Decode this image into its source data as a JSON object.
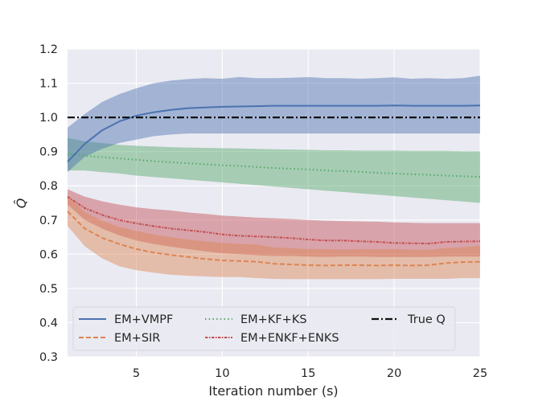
{
  "chart_data": {
    "type": "line",
    "title": "",
    "xlabel": "Iteration number (s)",
    "ylabel": "Q̂",
    "xlim": [
      1,
      25
    ],
    "ylim": [
      0.3,
      1.2
    ],
    "xticks": [
      5,
      10,
      15,
      20,
      25
    ],
    "yticks": [
      0.3,
      0.4,
      0.5,
      0.6,
      0.7,
      0.8,
      0.9,
      1.0,
      1.1,
      1.2
    ],
    "x": [
      1,
      2,
      3,
      4,
      5,
      6,
      7,
      8,
      9,
      10,
      11,
      12,
      13,
      14,
      15,
      16,
      17,
      18,
      19,
      20,
      21,
      22,
      23,
      24,
      25
    ],
    "grid": true,
    "legend_position": "lower-center",
    "series": [
      {
        "name": "EM+VMPF",
        "color": "#4c72b0",
        "style": "solid",
        "mean": [
          0.87,
          0.923,
          0.962,
          0.988,
          1.005,
          1.015,
          1.022,
          1.027,
          1.029,
          1.031,
          1.032,
          1.033,
          1.034,
          1.034,
          1.034,
          1.034,
          1.034,
          1.034,
          1.034,
          1.035,
          1.034,
          1.034,
          1.034,
          1.034,
          1.035
        ],
        "lower": [
          0.84,
          0.885,
          0.908,
          0.925,
          0.935,
          0.945,
          0.95,
          0.953,
          0.953,
          0.953,
          0.953,
          0.953,
          0.953,
          0.953,
          0.953,
          0.953,
          0.953,
          0.953,
          0.953,
          0.953,
          0.953,
          0.953,
          0.953,
          0.953,
          0.953
        ],
        "upper": [
          0.97,
          1.01,
          1.045,
          1.068,
          1.085,
          1.1,
          1.108,
          1.112,
          1.115,
          1.113,
          1.118,
          1.115,
          1.115,
          1.116,
          1.118,
          1.115,
          1.115,
          1.113,
          1.115,
          1.117,
          1.113,
          1.115,
          1.113,
          1.115,
          1.122
        ]
      },
      {
        "name": "EM+SIR",
        "color": "#dd8452",
        "style": "dashed",
        "mean": [
          0.725,
          0.675,
          0.648,
          0.63,
          0.615,
          0.605,
          0.598,
          0.592,
          0.586,
          0.582,
          0.58,
          0.578,
          0.572,
          0.57,
          0.568,
          0.567,
          0.568,
          0.568,
          0.567,
          0.568,
          0.567,
          0.568,
          0.574,
          0.577,
          0.578
        ],
        "lower": [
          0.683,
          0.623,
          0.588,
          0.565,
          0.553,
          0.546,
          0.54,
          0.537,
          0.535,
          0.533,
          0.533,
          0.53,
          0.528,
          0.527,
          0.527,
          0.527,
          0.527,
          0.527,
          0.527,
          0.528,
          0.528,
          0.528,
          0.528,
          0.53,
          0.53
        ],
        "upper": [
          0.77,
          0.723,
          0.698,
          0.68,
          0.668,
          0.658,
          0.65,
          0.643,
          0.638,
          0.633,
          0.63,
          0.628,
          0.62,
          0.618,
          0.615,
          0.615,
          0.613,
          0.615,
          0.615,
          0.615,
          0.613,
          0.613,
          0.618,
          0.62,
          0.625
        ]
      },
      {
        "name": "EM+KF+KS",
        "color": "#55a868",
        "style": "dotted",
        "mean": [
          0.893,
          0.888,
          0.884,
          0.88,
          0.876,
          0.872,
          0.869,
          0.866,
          0.863,
          0.86,
          0.858,
          0.855,
          0.852,
          0.85,
          0.848,
          0.845,
          0.843,
          0.841,
          0.838,
          0.836,
          0.834,
          0.832,
          0.83,
          0.828,
          0.826
        ],
        "lower": [
          0.845,
          0.845,
          0.84,
          0.836,
          0.83,
          0.826,
          0.822,
          0.818,
          0.814,
          0.81,
          0.806,
          0.802,
          0.798,
          0.794,
          0.79,
          0.786,
          0.782,
          0.778,
          0.774,
          0.77,
          0.766,
          0.762,
          0.758,
          0.754,
          0.75
        ],
        "upper": [
          0.94,
          0.93,
          0.925,
          0.92,
          0.917,
          0.915,
          0.913,
          0.912,
          0.911,
          0.91,
          0.909,
          0.908,
          0.907,
          0.906,
          0.905,
          0.904,
          0.904,
          0.903,
          0.903,
          0.903,
          0.902,
          0.902,
          0.902,
          0.901,
          0.901
        ]
      },
      {
        "name": "EM+ENKF+ENKS",
        "color": "#c44e52",
        "style": "dashdot-fine",
        "mean": [
          0.768,
          0.735,
          0.715,
          0.7,
          0.69,
          0.682,
          0.675,
          0.67,
          0.665,
          0.658,
          0.654,
          0.652,
          0.65,
          0.647,
          0.643,
          0.64,
          0.64,
          0.638,
          0.636,
          0.633,
          0.632,
          0.631,
          0.636,
          0.637,
          0.638
        ],
        "lower": [
          0.745,
          0.7,
          0.675,
          0.655,
          0.64,
          0.63,
          0.622,
          0.615,
          0.608,
          0.603,
          0.6,
          0.597,
          0.595,
          0.595,
          0.593,
          0.592,
          0.593,
          0.593,
          0.592,
          0.592,
          0.592,
          0.592,
          0.593,
          0.593,
          0.593
        ],
        "upper": [
          0.79,
          0.768,
          0.755,
          0.745,
          0.737,
          0.732,
          0.728,
          0.722,
          0.718,
          0.713,
          0.71,
          0.707,
          0.705,
          0.703,
          0.7,
          0.698,
          0.697,
          0.696,
          0.695,
          0.693,
          0.692,
          0.691,
          0.691,
          0.691,
          0.691
        ]
      },
      {
        "name": "True Q",
        "color": "#111111",
        "style": "dashdot",
        "constant": 1.0
      }
    ],
    "legend_entries": [
      "EM+VMPF",
      "EM+KF+KS",
      "True Q",
      "EM+SIR",
      "EM+ENKF+ENKS"
    ]
  }
}
